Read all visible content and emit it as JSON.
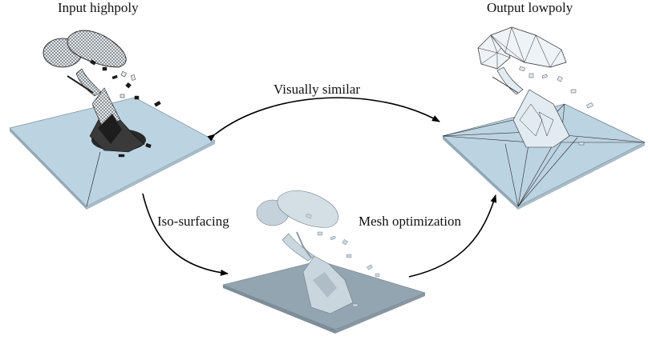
{
  "labels": {
    "input": "Input highpoly",
    "output": "Output lowpoly",
    "similar": "Visually similar",
    "iso": "Iso-surfacing",
    "optimization": "Mesh optimization"
  },
  "colors": {
    "plate": "#bcd3e2",
    "plate_dark": "#95aab6",
    "wire": "#1a1a1a",
    "mesh_light": "#dfe9f0",
    "arrow": "#000000"
  },
  "icons": {
    "input_model": "wireframe-highpoly-mesh",
    "middle_model": "smooth-iso-surface-mesh",
    "output_model": "lowpoly-triangulated-mesh"
  }
}
